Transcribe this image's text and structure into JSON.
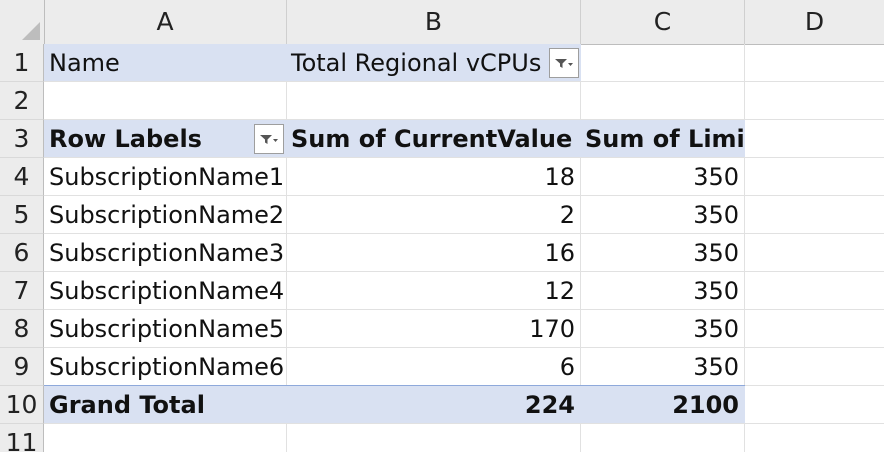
{
  "columns": [
    "A",
    "B",
    "C",
    "D"
  ],
  "rows": [
    "1",
    "2",
    "3",
    "4",
    "5",
    "6",
    "7",
    "8",
    "9",
    "10",
    "11"
  ],
  "filter": {
    "label": "Name",
    "value": "Total Regional vCPUs"
  },
  "pivot": {
    "headers": {
      "row_labels": "Row Labels",
      "sum_current": "Sum of CurrentValue",
      "sum_limit": "Sum of Limit"
    },
    "rows": [
      {
        "name": "SubscriptionName1",
        "current": "18",
        "limit": "350"
      },
      {
        "name": "SubscriptionName2",
        "current": "2",
        "limit": "350"
      },
      {
        "name": "SubscriptionName3",
        "current": "16",
        "limit": "350"
      },
      {
        "name": "SubscriptionName4",
        "current": "12",
        "limit": "350"
      },
      {
        "name": "SubscriptionName5",
        "current": "170",
        "limit": "350"
      },
      {
        "name": "SubscriptionName6",
        "current": "6",
        "limit": "350"
      }
    ],
    "grand_total": {
      "label": "Grand Total",
      "current": "224",
      "limit": "2100"
    }
  },
  "colors": {
    "pivot_band": "#d9e1f2",
    "band_border": "#8ea9db",
    "header_bg": "#ececec"
  }
}
